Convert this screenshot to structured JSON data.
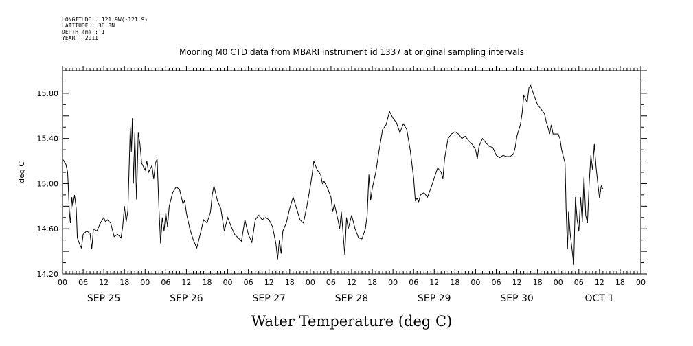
{
  "header": {
    "meta_lines": [
      "LONGITUDE : 121.9W(-121.9)",
      "LATITUDE : 36.8N",
      "DEPTH (m) : 1",
      "YEAR : 2011"
    ]
  },
  "chart_data": {
    "type": "line",
    "title": "Mooring M0 CTD data from MBARI instrument id 1337 at original sampling intervals",
    "xlabel": "Water Temperature (deg C)",
    "ylabel": "deg C",
    "ylim": [
      14.2,
      16.0
    ],
    "xlim": [
      0,
      168
    ],
    "yticks": [
      14.2,
      14.6,
      15.0,
      15.4,
      15.8
    ],
    "ytick_labels": [
      "14.20",
      "14.60",
      "15.00",
      "15.40",
      "15.80"
    ],
    "xtick_labels": [
      "00",
      "06",
      "12",
      "18",
      "00",
      "06",
      "12",
      "18",
      "00",
      "06",
      "12",
      "18",
      "00",
      "06",
      "12",
      "18",
      "00",
      "06",
      "12",
      "18",
      "00",
      "06",
      "12",
      "18",
      "00",
      "06",
      "12",
      "18",
      "00"
    ],
    "day_labels": [
      {
        "label": "SEP 25",
        "hour": 12
      },
      {
        "label": "SEP 26",
        "hour": 36
      },
      {
        "label": "SEP 27",
        "hour": 60
      },
      {
        "label": "SEP 28",
        "hour": 84
      },
      {
        "label": "SEP 29",
        "hour": 108
      },
      {
        "label": "SEP 30",
        "hour": 132
      },
      {
        "label": "OCT  1",
        "hour": 156
      }
    ],
    "grid": false,
    "series": [
      {
        "points": [
          [
            0,
            15.22
          ],
          [
            1,
            15.17
          ],
          [
            1.5,
            15.1
          ],
          [
            2,
            14.75
          ],
          [
            2.3,
            14.65
          ],
          [
            2.7,
            14.88
          ],
          [
            3,
            14.8
          ],
          [
            3.5,
            14.9
          ],
          [
            4,
            14.78
          ],
          [
            4.3,
            14.52
          ],
          [
            5,
            14.46
          ],
          [
            5.5,
            14.43
          ],
          [
            6,
            14.55
          ],
          [
            7,
            14.58
          ],
          [
            8,
            14.56
          ],
          [
            8.5,
            14.42
          ],
          [
            9,
            14.6
          ],
          [
            10,
            14.58
          ],
          [
            11,
            14.65
          ],
          [
            12,
            14.7
          ],
          [
            12.5,
            14.66
          ],
          [
            13,
            14.68
          ],
          [
            14,
            14.65
          ],
          [
            15,
            14.53
          ],
          [
            16,
            14.55
          ],
          [
            17,
            14.52
          ],
          [
            17.5,
            14.62
          ],
          [
            18,
            14.8
          ],
          [
            18.5,
            14.66
          ],
          [
            19,
            14.76
          ],
          [
            19.7,
            15.5
          ],
          [
            20,
            15.28
          ],
          [
            20.3,
            15.58
          ],
          [
            20.6,
            15.0
          ],
          [
            21,
            15.45
          ],
          [
            21.5,
            14.86
          ],
          [
            22,
            15.45
          ],
          [
            22.5,
            15.35
          ],
          [
            23,
            15.18
          ],
          [
            24,
            15.12
          ],
          [
            24.5,
            15.2
          ],
          [
            25,
            15.1
          ],
          [
            26,
            15.16
          ],
          [
            26.5,
            15.04
          ],
          [
            27,
            15.18
          ],
          [
            27.5,
            15.22
          ],
          [
            28,
            14.8
          ],
          [
            28.5,
            14.47
          ],
          [
            29,
            14.7
          ],
          [
            29.5,
            14.58
          ],
          [
            30,
            14.74
          ],
          [
            30.5,
            14.62
          ],
          [
            31,
            14.8
          ],
          [
            32,
            14.92
          ],
          [
            33,
            14.97
          ],
          [
            34,
            14.95
          ],
          [
            35,
            14.82
          ],
          [
            35.5,
            14.85
          ],
          [
            36,
            14.74
          ],
          [
            37,
            14.6
          ],
          [
            38,
            14.5
          ],
          [
            39,
            14.43
          ],
          [
            40,
            14.55
          ],
          [
            41,
            14.68
          ],
          [
            42,
            14.65
          ],
          [
            43,
            14.75
          ],
          [
            43.5,
            14.9
          ],
          [
            44,
            14.98
          ],
          [
            45,
            14.85
          ],
          [
            46,
            14.78
          ],
          [
            47,
            14.58
          ],
          [
            48,
            14.7
          ],
          [
            49,
            14.62
          ],
          [
            50,
            14.55
          ],
          [
            51,
            14.52
          ],
          [
            52,
            14.49
          ],
          [
            53,
            14.68
          ],
          [
            54,
            14.55
          ],
          [
            55,
            14.48
          ],
          [
            56,
            14.68
          ],
          [
            57,
            14.72
          ],
          [
            58,
            14.68
          ],
          [
            59,
            14.7
          ],
          [
            60,
            14.68
          ],
          [
            61,
            14.62
          ],
          [
            62,
            14.47
          ],
          [
            62.5,
            14.33
          ],
          [
            63,
            14.5
          ],
          [
            63.5,
            14.38
          ],
          [
            64,
            14.58
          ],
          [
            65,
            14.65
          ],
          [
            66,
            14.78
          ],
          [
            67,
            14.88
          ],
          [
            68,
            14.78
          ],
          [
            69,
            14.68
          ],
          [
            70,
            14.65
          ],
          [
            71,
            14.8
          ],
          [
            72,
            14.98
          ],
          [
            72.5,
            15.08
          ],
          [
            73,
            15.2
          ],
          [
            74,
            15.12
          ],
          [
            75,
            15.08
          ],
          [
            75.5,
            15.0
          ],
          [
            76,
            15.02
          ],
          [
            77,
            14.96
          ],
          [
            78,
            14.88
          ],
          [
            78.5,
            14.75
          ],
          [
            79,
            14.82
          ],
          [
            80,
            14.68
          ],
          [
            80.5,
            14.6
          ],
          [
            81,
            14.75
          ],
          [
            82,
            14.37
          ],
          [
            82.5,
            14.7
          ],
          [
            83,
            14.6
          ],
          [
            84,
            14.72
          ],
          [
            85,
            14.6
          ],
          [
            86,
            14.52
          ],
          [
            87,
            14.51
          ],
          [
            88,
            14.6
          ],
          [
            88.5,
            14.72
          ],
          [
            89,
            15.08
          ],
          [
            89.5,
            14.85
          ],
          [
            90,
            14.96
          ],
          [
            91,
            15.1
          ],
          [
            92,
            15.3
          ],
          [
            93,
            15.48
          ],
          [
            94,
            15.52
          ],
          [
            95,
            15.64
          ],
          [
            96,
            15.58
          ],
          [
            97,
            15.54
          ],
          [
            98,
            15.45
          ],
          [
            99,
            15.53
          ],
          [
            100,
            15.48
          ],
          [
            101,
            15.3
          ],
          [
            102,
            15.05
          ],
          [
            102.5,
            14.85
          ],
          [
            103,
            14.87
          ],
          [
            103.5,
            14.84
          ],
          [
            104,
            14.9
          ],
          [
            105,
            14.92
          ],
          [
            106,
            14.88
          ],
          [
            107,
            14.96
          ],
          [
            108,
            15.05
          ],
          [
            109,
            15.14
          ],
          [
            110,
            15.1
          ],
          [
            110.5,
            15.04
          ],
          [
            111,
            15.22
          ],
          [
            112,
            15.4
          ],
          [
            113,
            15.44
          ],
          [
            114,
            15.46
          ],
          [
            115,
            15.44
          ],
          [
            116,
            15.4
          ],
          [
            117,
            15.42
          ],
          [
            118,
            15.38
          ],
          [
            119,
            15.35
          ],
          [
            120,
            15.3
          ],
          [
            120.5,
            15.22
          ],
          [
            121,
            15.33
          ],
          [
            122,
            15.4
          ],
          [
            123,
            15.36
          ],
          [
            124,
            15.33
          ],
          [
            125,
            15.32
          ],
          [
            126,
            15.25
          ],
          [
            127,
            15.23
          ],
          [
            128,
            15.25
          ],
          [
            129,
            15.24
          ],
          [
            130,
            15.24
          ],
          [
            131,
            15.26
          ],
          [
            131.5,
            15.32
          ],
          [
            132,
            15.42
          ],
          [
            133,
            15.52
          ],
          [
            133.5,
            15.62
          ],
          [
            134,
            15.78
          ],
          [
            135,
            15.72
          ],
          [
            135.5,
            15.85
          ],
          [
            136,
            15.87
          ],
          [
            137,
            15.78
          ],
          [
            138,
            15.7
          ],
          [
            139,
            15.66
          ],
          [
            140,
            15.62
          ],
          [
            140.5,
            15.55
          ],
          [
            141,
            15.5
          ],
          [
            141.5,
            15.44
          ],
          [
            142,
            15.52
          ],
          [
            142.5,
            15.44
          ],
          [
            143,
            15.44
          ],
          [
            144,
            15.44
          ],
          [
            144.5,
            15.4
          ],
          [
            145,
            15.3
          ],
          [
            146,
            15.18
          ],
          [
            146.3,
            14.78
          ],
          [
            146.7,
            14.42
          ],
          [
            147,
            14.75
          ],
          [
            147.5,
            14.55
          ],
          [
            148,
            14.42
          ],
          [
            148.5,
            14.28
          ],
          [
            149,
            14.88
          ],
          [
            149.5,
            14.68
          ],
          [
            150,
            14.58
          ],
          [
            150.5,
            14.88
          ],
          [
            151,
            14.66
          ],
          [
            151.5,
            15.06
          ],
          [
            152,
            14.72
          ],
          [
            152.5,
            14.65
          ],
          [
            153,
            15.0
          ],
          [
            153.5,
            15.25
          ],
          [
            154,
            15.12
          ],
          [
            154.5,
            15.35
          ],
          [
            155,
            15.15
          ],
          [
            155.5,
            15.0
          ],
          [
            156,
            14.87
          ],
          [
            156.5,
            14.98
          ],
          [
            157,
            14.95
          ]
        ]
      }
    ]
  }
}
